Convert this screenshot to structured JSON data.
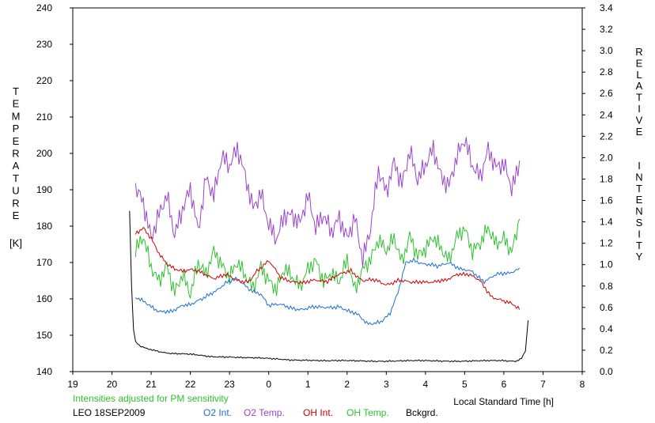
{
  "chart_data": {
    "type": "line",
    "left_axis": {
      "label_letters": [
        "T",
        "E",
        "M",
        "P",
        "E",
        "R",
        "A",
        "T",
        "U",
        "R",
        "E"
      ],
      "unit": "[K]",
      "range": [
        140,
        240
      ],
      "ticks": [
        {
          "v": 140,
          "t": "140"
        },
        {
          "v": 150,
          "t": "150"
        },
        {
          "v": 160,
          "t": "160"
        },
        {
          "v": 170,
          "t": "170"
        },
        {
          "v": 180,
          "t": "180"
        },
        {
          "v": 190,
          "t": "190"
        },
        {
          "v": 200,
          "t": "200"
        },
        {
          "v": 210,
          "t": "210"
        },
        {
          "v": 220,
          "t": "220"
        },
        {
          "v": 230,
          "t": "230"
        },
        {
          "v": 240,
          "t": "240"
        }
      ]
    },
    "right_axis": {
      "label_letters": [
        "R",
        "E",
        "L",
        "A",
        "T",
        "I",
        "V",
        "E",
        " ",
        " ",
        "I",
        "N",
        "T",
        "E",
        "N",
        "S",
        "I",
        "T",
        "Y"
      ],
      "range": [
        0,
        3.4
      ],
      "ticks": [
        {
          "v": 0.0,
          "t": "0.0"
        },
        {
          "v": 0.2,
          "t": "0.2"
        },
        {
          "v": 0.4,
          "t": "0.4"
        },
        {
          "v": 0.6,
          "t": "0.6"
        },
        {
          "v": 0.8,
          "t": "0.8"
        },
        {
          "v": 1.0,
          "t": "1.0"
        },
        {
          "v": 1.2,
          "t": "1.2"
        },
        {
          "v": 1.4,
          "t": "1.4"
        },
        {
          "v": 1.6,
          "t": "1.6"
        },
        {
          "v": 1.8,
          "t": "1.8"
        },
        {
          "v": 2.0,
          "t": "2.0"
        },
        {
          "v": 2.2,
          "t": "2.2"
        },
        {
          "v": 2.4,
          "t": "2.4"
        },
        {
          "v": 2.6,
          "t": "2.6"
        },
        {
          "v": 2.8,
          "t": "2.8"
        },
        {
          "v": 3.0,
          "t": "3.0"
        },
        {
          "v": 3.2,
          "t": "3.2"
        },
        {
          "v": 3.4,
          "t": "3.4"
        }
      ]
    },
    "x_axis": {
      "label": "Local Standard Time [h]",
      "range": [
        19,
        32
      ],
      "ticks": [
        {
          "v": 19,
          "t": "19"
        },
        {
          "v": 20,
          "t": "20"
        },
        {
          "v": 21,
          "t": "21"
        },
        {
          "v": 22,
          "t": "22"
        },
        {
          "v": 23,
          "t": "23"
        },
        {
          "v": 24,
          "t": "0"
        },
        {
          "v": 25,
          "t": "1"
        },
        {
          "v": 26,
          "t": "2"
        },
        {
          "v": 27,
          "t": "3"
        },
        {
          "v": 28,
          "t": "4"
        },
        {
          "v": 29,
          "t": "5"
        },
        {
          "v": 30,
          "t": "6"
        },
        {
          "v": 31,
          "t": "7"
        },
        {
          "v": 32,
          "t": "8"
        }
      ]
    },
    "note": "Intensities adjusted for PM sensitivity",
    "station": "LEO 18SEP2009",
    "series": [
      {
        "name": "O2 Int.",
        "color": "#1a6fd6",
        "axis": "right",
        "x": [
          20.6,
          20.8,
          21.0,
          21.2,
          21.5,
          21.8,
          22.0,
          22.3,
          22.6,
          22.9,
          23.2,
          23.5,
          23.8,
          24.0,
          24.3,
          24.6,
          24.9,
          25.2,
          25.5,
          25.8,
          26.0,
          26.3,
          26.5,
          26.7,
          26.9,
          27.1,
          27.3,
          27.5,
          27.7,
          28.0,
          28.3,
          28.6,
          28.9,
          29.2,
          29.5,
          29.8,
          30.1,
          30.4
        ],
        "y": [
          0.7,
          0.66,
          0.6,
          0.55,
          0.57,
          0.62,
          0.63,
          0.67,
          0.75,
          0.83,
          0.86,
          0.78,
          0.72,
          0.62,
          0.62,
          0.6,
          0.58,
          0.6,
          0.61,
          0.6,
          0.57,
          0.52,
          0.44,
          0.44,
          0.47,
          0.55,
          0.75,
          1.03,
          1.05,
          1.0,
          0.98,
          1.03,
          0.95,
          0.93,
          0.85,
          0.9,
          0.92,
          0.97
        ]
      },
      {
        "name": "O2 Temp.",
        "color": "#9b44cc",
        "axis": "left",
        "x": [
          20.6,
          20.8,
          21.0,
          21.2,
          21.4,
          21.6,
          21.8,
          22.0,
          22.2,
          22.4,
          22.6,
          22.8,
          23.0,
          23.2,
          23.4,
          23.6,
          23.8,
          24.0,
          24.2,
          24.4,
          24.6,
          24.8,
          25.0,
          25.2,
          25.4,
          25.6,
          25.8,
          26.0,
          26.2,
          26.4,
          26.6,
          26.8,
          27.0,
          27.2,
          27.4,
          27.6,
          27.8,
          28.0,
          28.2,
          28.4,
          28.6,
          28.8,
          29.0,
          29.2,
          29.4,
          29.6,
          29.8,
          30.0,
          30.2,
          30.4
        ],
        "y": [
          190,
          185,
          175,
          182,
          188,
          178,
          186,
          192,
          180,
          194,
          188,
          198,
          195,
          200,
          193,
          185,
          190,
          182,
          178,
          184,
          183,
          180,
          187,
          178,
          182,
          178,
          183,
          178,
          184,
          172,
          180,
          195,
          188,
          196,
          190,
          200,
          193,
          198,
          203,
          195,
          192,
          199,
          203,
          195,
          192,
          200,
          196,
          198,
          192,
          198
        ]
      },
      {
        "name": "OH Int.",
        "color": "#d00000",
        "axis": "right",
        "x": [
          20.6,
          20.8,
          21.0,
          21.2,
          21.4,
          21.6,
          21.8,
          22.0,
          22.3,
          22.6,
          22.9,
          23.2,
          23.5,
          23.7,
          24.0,
          24.3,
          24.6,
          24.9,
          25.2,
          25.5,
          25.8,
          26.1,
          26.4,
          26.7,
          27.0,
          27.3,
          27.6,
          27.9,
          28.2,
          28.5,
          28.8,
          29.1,
          29.4,
          29.7,
          30.0,
          30.2,
          30.4
        ],
        "y": [
          1.3,
          1.35,
          1.25,
          1.1,
          1.0,
          0.95,
          0.93,
          0.95,
          0.92,
          0.88,
          0.9,
          0.85,
          0.85,
          0.95,
          1.03,
          0.88,
          0.85,
          0.82,
          0.86,
          0.85,
          0.9,
          0.95,
          0.85,
          0.85,
          0.82,
          0.85,
          0.83,
          0.85,
          0.83,
          0.85,
          0.92,
          0.9,
          0.85,
          0.7,
          0.65,
          0.63,
          0.58
        ]
      },
      {
        "name": "OH Temp.",
        "color": "#2ec22e",
        "axis": "left",
        "x": [
          20.6,
          20.8,
          21.0,
          21.2,
          21.4,
          21.6,
          21.8,
          22.0,
          22.2,
          22.4,
          22.6,
          22.8,
          23.0,
          23.2,
          23.4,
          23.6,
          23.8,
          24.0,
          24.2,
          24.4,
          24.6,
          24.8,
          25.0,
          25.2,
          25.4,
          25.6,
          25.8,
          26.0,
          26.2,
          26.4,
          26.6,
          26.8,
          27.0,
          27.2,
          27.4,
          27.6,
          27.8,
          28.0,
          28.2,
          28.4,
          28.6,
          28.8,
          29.0,
          29.2,
          29.4,
          29.6,
          29.8,
          30.0,
          30.2,
          30.4
        ],
        "y": [
          172,
          176,
          168,
          165,
          170,
          163,
          168,
          162,
          170,
          166,
          172,
          168,
          165,
          170,
          167,
          164,
          170,
          166,
          163,
          168,
          165,
          162,
          167,
          170,
          165,
          168,
          166,
          172,
          163,
          168,
          170,
          175,
          172,
          176,
          170,
          178,
          173,
          175,
          178,
          174,
          170,
          176,
          178,
          172,
          175,
          180,
          176,
          178,
          174,
          182
        ]
      },
      {
        "name": "Bckgrd.",
        "color": "#000000",
        "axis": "right",
        "x": [
          20.45,
          20.5,
          20.55,
          20.6,
          20.7,
          20.9,
          21.2,
          21.5,
          22.0,
          22.5,
          23.0,
          23.5,
          24.0,
          24.5,
          25.0,
          25.5,
          26.0,
          26.5,
          27.0,
          27.5,
          28.0,
          28.5,
          29.0,
          29.5,
          30.0,
          30.3,
          30.45,
          30.55,
          30.62
        ],
        "y": [
          1.5,
          0.8,
          0.4,
          0.28,
          0.24,
          0.21,
          0.19,
          0.17,
          0.16,
          0.14,
          0.14,
          0.13,
          0.12,
          0.11,
          0.11,
          0.1,
          0.1,
          0.1,
          0.1,
          0.1,
          0.1,
          0.1,
          0.1,
          0.1,
          0.1,
          0.1,
          0.12,
          0.2,
          0.48
        ]
      }
    ]
  }
}
